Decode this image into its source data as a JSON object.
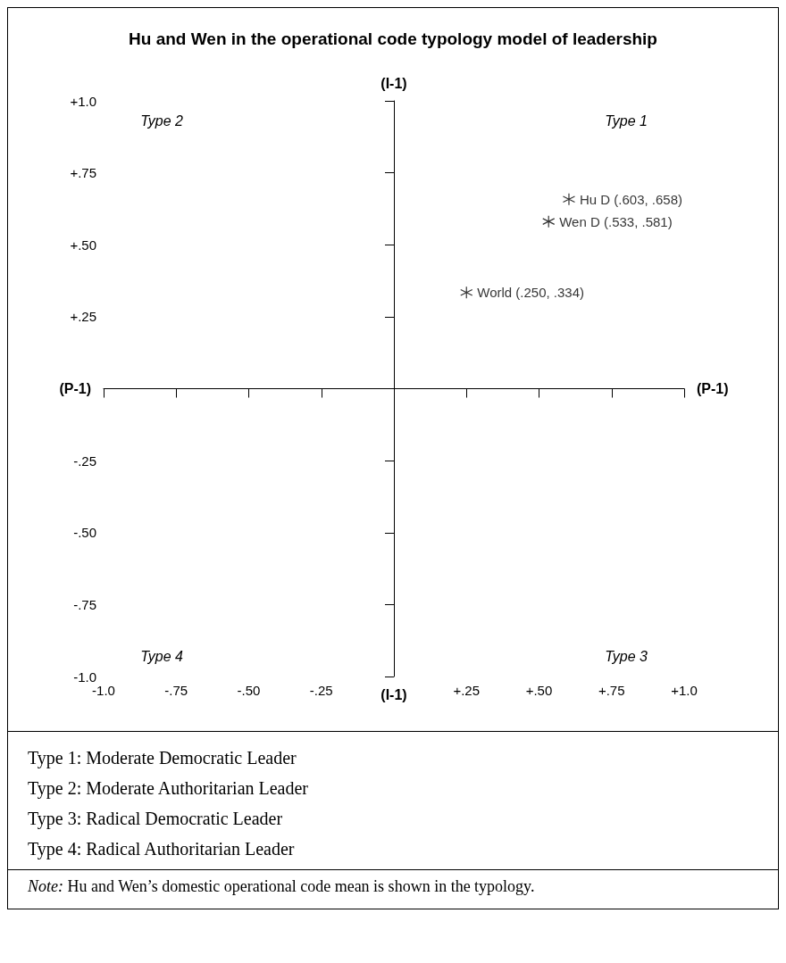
{
  "chart_data": {
    "type": "scatter",
    "title": "Hu and Wen in the operational code typology model of leadership",
    "xlabel": "(P-1)",
    "ylabel": "(I-1)",
    "x": [
      0.603,
      0.533,
      0.25
    ],
    "values": [
      0.658,
      0.581,
      0.334
    ],
    "value_labels": [
      "Hu D (.603, .658)",
      "Wen D (.533, .581)",
      "World (.250, .334)"
    ],
    "color": "#000000",
    "marker": "cross",
    "xlim": [
      -1,
      1
    ],
    "ylim": [
      -1,
      1
    ],
    "xticks": [
      {
        "value": -1,
        "label": "-1.0"
      },
      {
        "value": -0.75,
        "label": "-.75"
      },
      {
        "value": -0.5,
        "label": "-.50"
      },
      {
        "value": -0.25,
        "label": "-.25"
      },
      {
        "value": 0.25,
        "label": "+.25"
      },
      {
        "value": 0.5,
        "label": "+.50"
      },
      {
        "value": 0.75,
        "label": "+.75"
      },
      {
        "value": 1,
        "label": "+1.0"
      }
    ],
    "yticks": [
      {
        "value": -1,
        "label": "-1.0"
      },
      {
        "value": -0.75,
        "label": "-.75"
      },
      {
        "value": -0.5,
        "label": "-.50"
      },
      {
        "value": -0.25,
        "label": "-.25"
      },
      {
        "value": 0.25,
        "label": "+.25"
      },
      {
        "value": 0.5,
        "label": "+.50"
      },
      {
        "value": 0.75,
        "label": "+.75"
      },
      {
        "value": 1,
        "label": "+1.0"
      }
    ],
    "annotations": [
      "Type 1",
      "Type 2",
      "Type 3",
      "Type 4",
      "Type 1: Moderate Democratic Leader",
      "Type 2: Moderate Authoritarian Leader",
      "Type 3: Radical Democratic Leader",
      "Type 4: Radical Authoritarian Leader",
      "Note: Hu and Wen’s domestic operational code mean is shown in the typology."
    ]
  }
}
